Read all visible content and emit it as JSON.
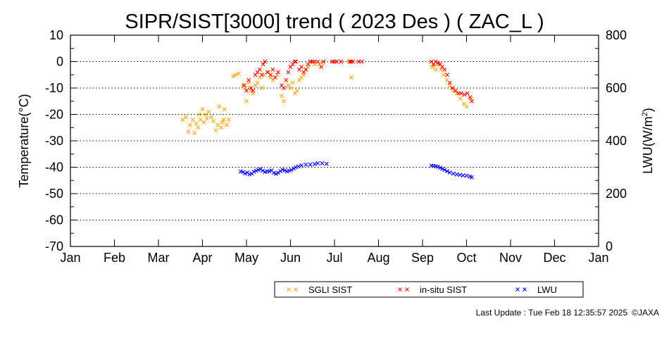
{
  "chart_data": {
    "type": "scatter",
    "title": "SIPR/SIST[3000] trend ( 2023 Des ) ( ZAC_L )",
    "ylabel": "Temperature(°C)",
    "y2label_main": "LWU(W/m",
    "y2label_sup": "2",
    "y2label_end": ")",
    "xlabel": "",
    "x_ticklabels": [
      "Jan",
      "Feb",
      "Mar",
      "Apr",
      "May",
      "Jun",
      "Jul",
      "Aug",
      "Sep",
      "Oct",
      "Nov",
      "Dec",
      "Jan"
    ],
    "ylim": [
      -70,
      10
    ],
    "yticks": [
      10,
      0,
      -10,
      -20,
      -30,
      -40,
      -50,
      -60,
      -70
    ],
    "y2lim": [
      0,
      800
    ],
    "y2ticks": [
      800,
      600,
      400,
      200,
      0
    ],
    "grid": "horizontal dotted",
    "legend_position": "bottom",
    "series": [
      {
        "name": "SGLI SIST",
        "color": "#ffa500",
        "axis": "left",
        "x_unit": "month",
        "points": [
          [
            2.55,
            -22
          ],
          [
            2.62,
            -21
          ],
          [
            2.68,
            -26.5
          ],
          [
            2.72,
            -24
          ],
          [
            2.78,
            -22
          ],
          [
            2.82,
            -27
          ],
          [
            2.86,
            -23.5
          ],
          [
            2.9,
            -25
          ],
          [
            2.93,
            -20
          ],
          [
            2.96,
            -22
          ],
          [
            3.0,
            -18
          ],
          [
            3.03,
            -23
          ],
          [
            3.07,
            -20
          ],
          [
            3.1,
            -21.5
          ],
          [
            3.14,
            -19
          ],
          [
            3.2,
            -21
          ],
          [
            3.25,
            -22.5
          ],
          [
            3.3,
            -26
          ],
          [
            3.35,
            -24
          ],
          [
            3.38,
            -17
          ],
          [
            3.42,
            -25
          ],
          [
            3.45,
            -23
          ],
          [
            3.48,
            -22
          ],
          [
            3.5,
            -18
          ],
          [
            3.55,
            -24
          ],
          [
            3.6,
            -22
          ],
          [
            3.7,
            -5.5
          ],
          [
            3.75,
            -5
          ],
          [
            3.82,
            -4.5
          ],
          [
            3.92,
            -9
          ],
          [
            3.97,
            -10
          ],
          [
            4.0,
            -15
          ],
          [
            4.05,
            -8
          ],
          [
            4.1,
            -11
          ],
          [
            4.15,
            -12
          ],
          [
            4.2,
            -9
          ],
          [
            4.25,
            -8
          ],
          [
            4.3,
            -6
          ],
          [
            4.35,
            -10
          ],
          [
            4.4,
            -5
          ],
          [
            4.5,
            -4
          ],
          [
            4.55,
            -6
          ],
          [
            4.6,
            -7
          ],
          [
            4.7,
            -5
          ],
          [
            4.8,
            -13
          ],
          [
            4.85,
            -15
          ],
          [
            4.95,
            -9
          ],
          [
            5.0,
            -10
          ],
          [
            5.05,
            -8
          ],
          [
            5.1,
            -12
          ],
          [
            5.15,
            -11
          ],
          [
            5.2,
            -7
          ],
          [
            5.25,
            -6
          ],
          [
            5.3,
            -5
          ],
          [
            5.35,
            -3
          ],
          [
            5.4,
            -2
          ],
          [
            5.45,
            0
          ],
          [
            5.55,
            -1
          ],
          [
            5.65,
            -1
          ],
          [
            5.72,
            -0.5
          ],
          [
            5.95,
            0
          ],
          [
            6.0,
            0
          ],
          [
            6.05,
            0
          ],
          [
            6.15,
            0
          ],
          [
            6.33,
            0
          ],
          [
            6.38,
            -6
          ],
          [
            8.22,
            -2
          ],
          [
            8.26,
            -1.5
          ],
          [
            8.3,
            -3
          ],
          [
            8.36,
            -1
          ],
          [
            8.42,
            -3
          ],
          [
            8.48,
            -5
          ],
          [
            8.55,
            -7
          ],
          [
            8.62,
            -9
          ],
          [
            8.7,
            -11
          ],
          [
            8.78,
            -12
          ],
          [
            8.86,
            -14
          ],
          [
            8.94,
            -16
          ],
          [
            9.0,
            -17
          ],
          [
            9.1,
            -14
          ]
        ]
      },
      {
        "name": "in-situ SIST",
        "color": "#ff0000",
        "axis": "left",
        "x_unit": "month",
        "points": [
          [
            3.95,
            -9
          ],
          [
            4.0,
            -11
          ],
          [
            4.05,
            -7
          ],
          [
            4.1,
            -10
          ],
          [
            4.15,
            -11
          ],
          [
            4.2,
            -5
          ],
          [
            4.25,
            -4
          ],
          [
            4.3,
            -3
          ],
          [
            4.35,
            -5
          ],
          [
            4.38,
            -1
          ],
          [
            4.42,
            0
          ],
          [
            4.48,
            -4
          ],
          [
            4.55,
            -5
          ],
          [
            4.6,
            -3
          ],
          [
            4.65,
            -6
          ],
          [
            4.72,
            -4
          ],
          [
            4.8,
            -9
          ],
          [
            4.85,
            -10
          ],
          [
            4.9,
            -7
          ],
          [
            4.95,
            -4
          ],
          [
            5.0,
            -2
          ],
          [
            5.05,
            -1
          ],
          [
            5.1,
            0
          ],
          [
            5.12,
            0
          ],
          [
            5.2,
            -3
          ],
          [
            5.25,
            -2
          ],
          [
            5.3,
            -4
          ],
          [
            5.35,
            -3
          ],
          [
            5.4,
            -1
          ],
          [
            5.45,
            0
          ],
          [
            5.5,
            0
          ],
          [
            5.55,
            0
          ],
          [
            5.62,
            0
          ],
          [
            5.7,
            -2
          ],
          [
            5.75,
            0
          ],
          [
            5.95,
            0
          ],
          [
            6.0,
            0
          ],
          [
            6.05,
            0
          ],
          [
            6.15,
            0
          ],
          [
            6.35,
            0
          ],
          [
            6.38,
            0
          ],
          [
            6.42,
            0
          ],
          [
            6.55,
            0
          ],
          [
            6.62,
            0
          ],
          [
            8.2,
            0
          ],
          [
            8.25,
            -1
          ],
          [
            8.3,
            0
          ],
          [
            8.35,
            -0.5
          ],
          [
            8.4,
            -1
          ],
          [
            8.45,
            -2
          ],
          [
            8.5,
            -3
          ],
          [
            8.56,
            -5
          ],
          [
            8.62,
            -8
          ],
          [
            8.68,
            -10
          ],
          [
            8.75,
            -11
          ],
          [
            8.82,
            -12
          ],
          [
            8.88,
            -12
          ],
          [
            8.95,
            -12.5
          ],
          [
            9.02,
            -12
          ],
          [
            9.08,
            -13.5
          ],
          [
            9.12,
            -15
          ]
        ]
      },
      {
        "name": "LWU",
        "color": "#0000ff",
        "axis": "right",
        "x_unit": "month",
        "points": [
          [
            3.87,
            284
          ],
          [
            3.92,
            282
          ],
          [
            3.97,
            276
          ],
          [
            4.02,
            280
          ],
          [
            4.07,
            273
          ],
          [
            4.12,
            276
          ],
          [
            4.17,
            283
          ],
          [
            4.22,
            287
          ],
          [
            4.27,
            290
          ],
          [
            4.32,
            293
          ],
          [
            4.37,
            287
          ],
          [
            4.42,
            282
          ],
          [
            4.47,
            284
          ],
          [
            4.52,
            285
          ],
          [
            4.57,
            288
          ],
          [
            4.62,
            279
          ],
          [
            4.67,
            275
          ],
          [
            4.72,
            279
          ],
          [
            4.77,
            285
          ],
          [
            4.82,
            291
          ],
          [
            4.87,
            288
          ],
          [
            4.92,
            284
          ],
          [
            4.97,
            287
          ],
          [
            5.02,
            290
          ],
          [
            5.07,
            295
          ],
          [
            5.12,
            300
          ],
          [
            5.18,
            303
          ],
          [
            5.25,
            307
          ],
          [
            5.35,
            310
          ],
          [
            5.45,
            310
          ],
          [
            5.55,
            312
          ],
          [
            5.62,
            315
          ],
          [
            5.72,
            315
          ],
          [
            5.82,
            313
          ],
          [
            8.2,
            306
          ],
          [
            8.25,
            305
          ],
          [
            8.3,
            304
          ],
          [
            8.35,
            302
          ],
          [
            8.4,
            298
          ],
          [
            8.45,
            294
          ],
          [
            8.5,
            290
          ],
          [
            8.56,
            285
          ],
          [
            8.62,
            280
          ],
          [
            8.7,
            276
          ],
          [
            8.78,
            273
          ],
          [
            8.85,
            271
          ],
          [
            8.92,
            269
          ],
          [
            9.0,
            268
          ],
          [
            9.08,
            265
          ],
          [
            9.12,
            262
          ]
        ]
      }
    ]
  },
  "footer": {
    "last_update": "Last Update : Tue Feb 18 12:35:57 2025",
    "copyright": "©JAXA"
  }
}
